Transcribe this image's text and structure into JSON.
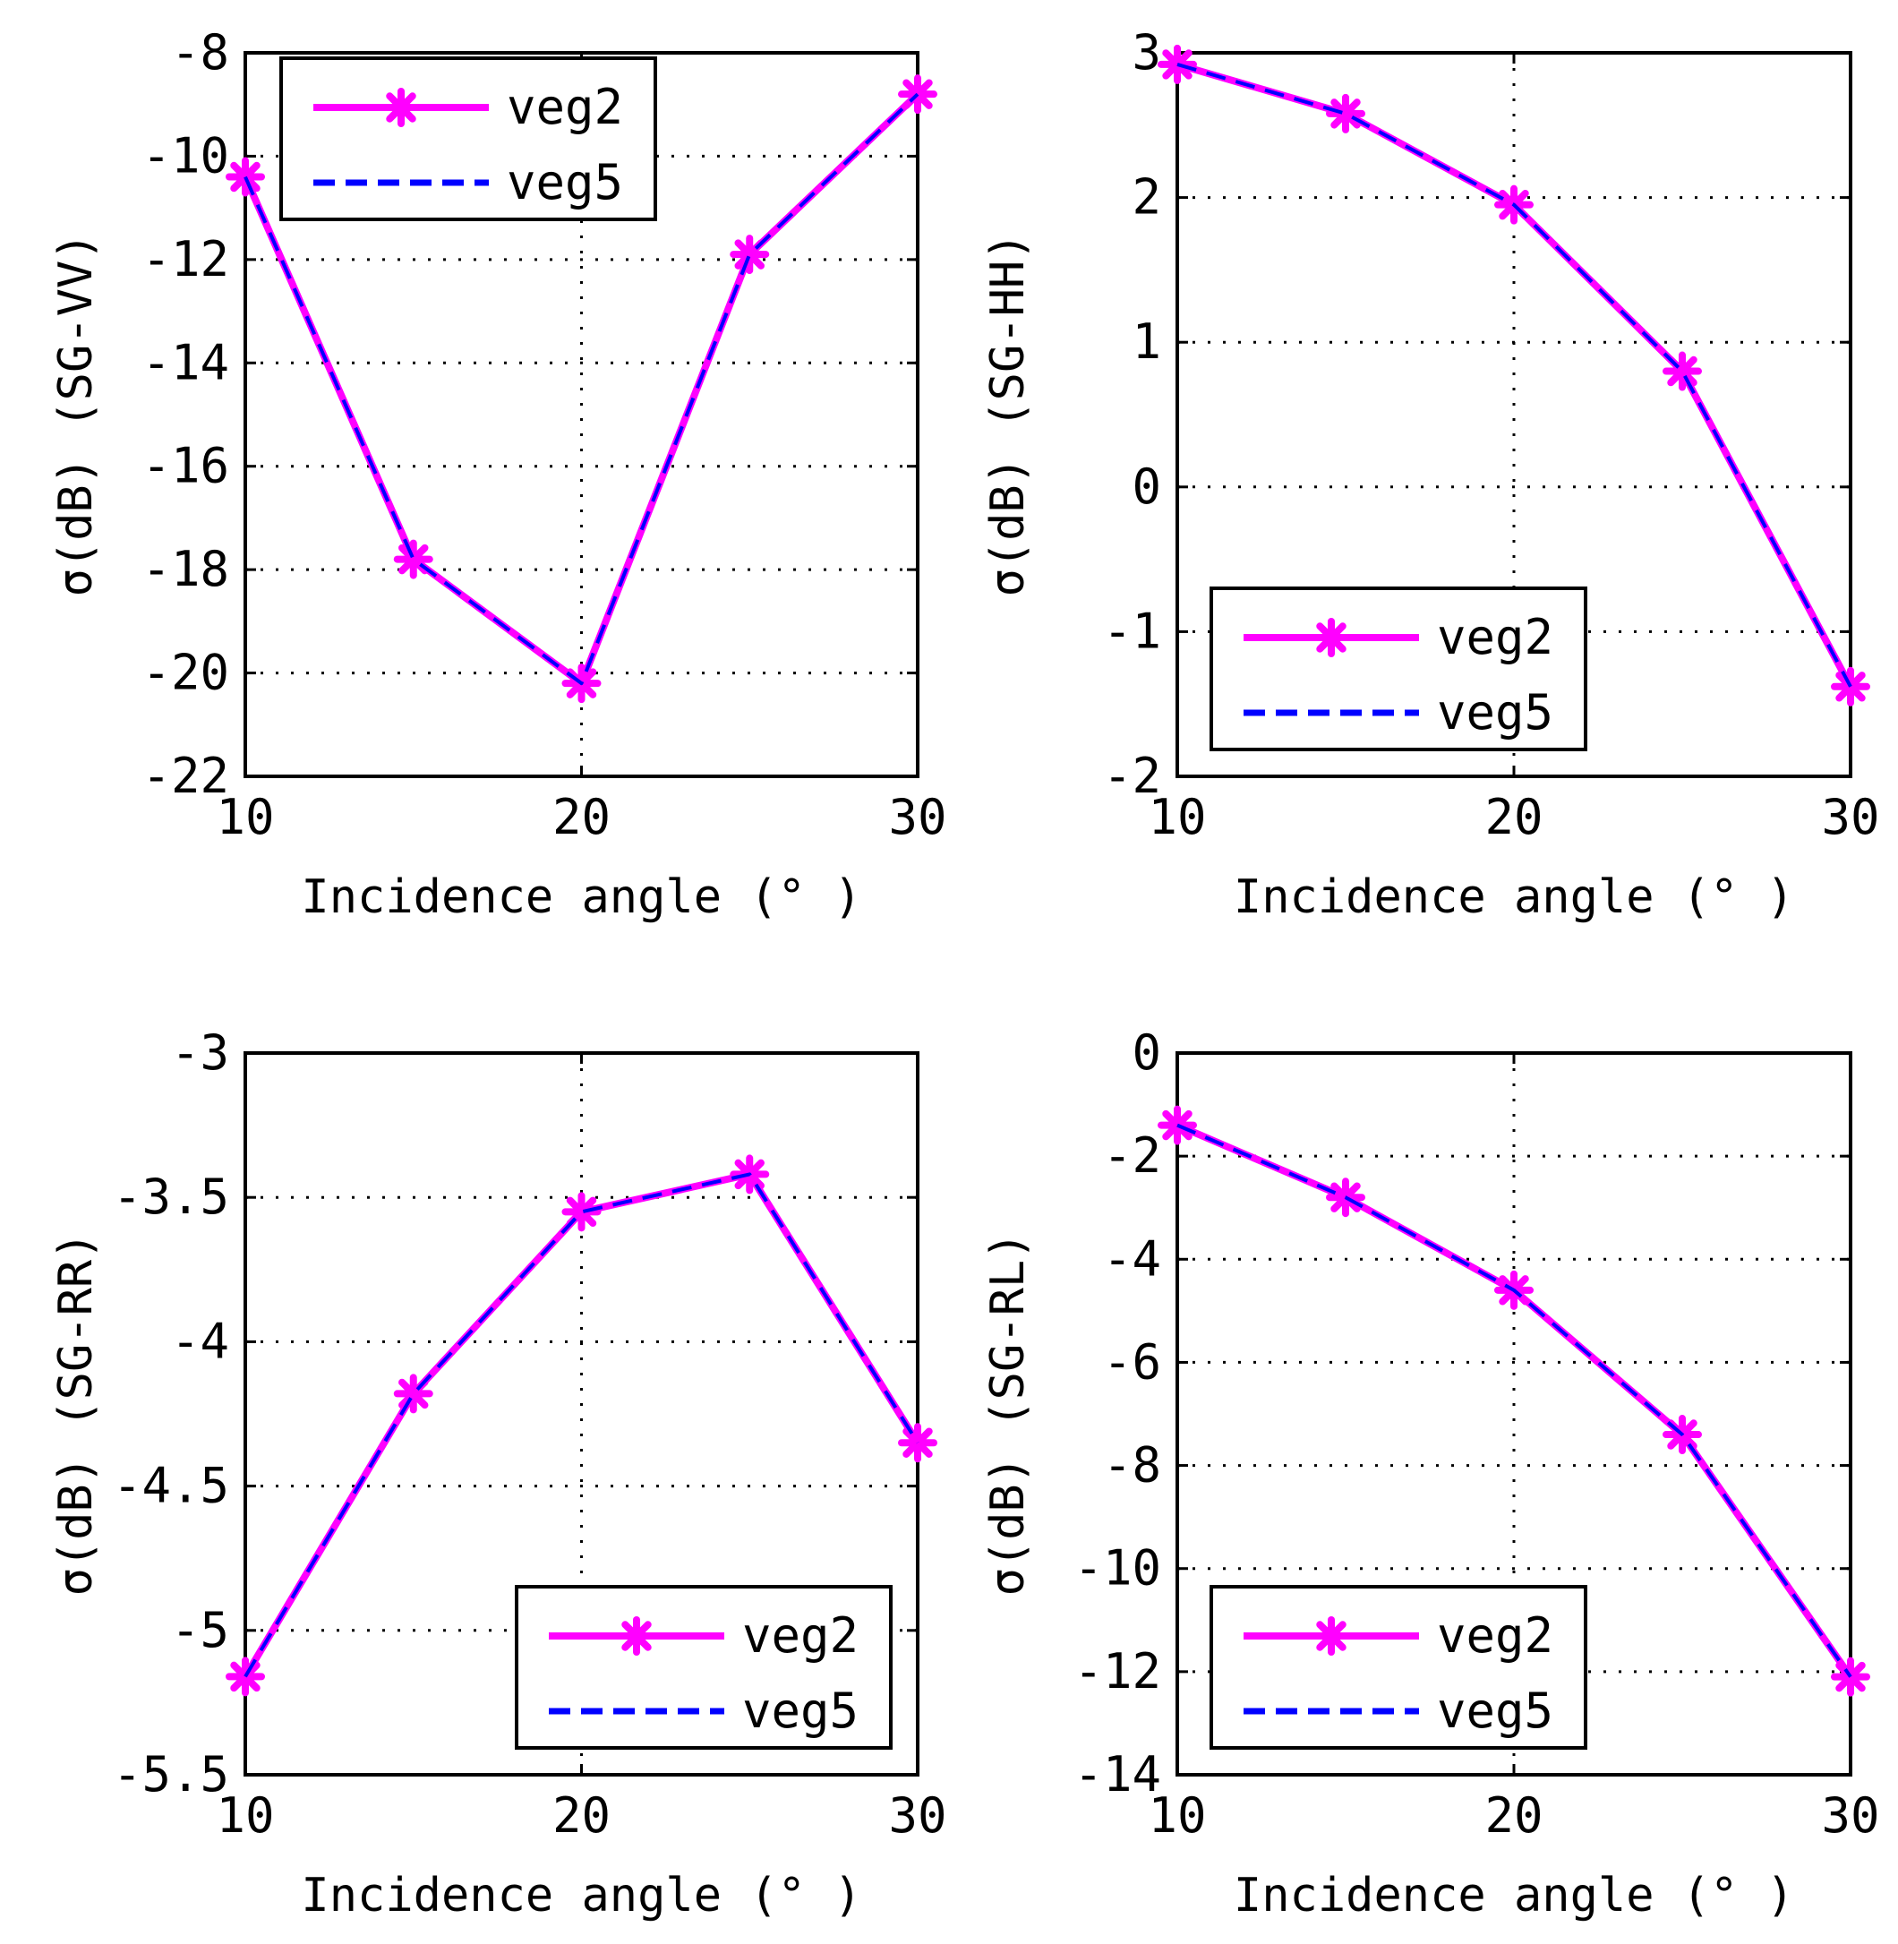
{
  "colors": {
    "veg2": "#ff00ff",
    "veg5": "#0000ff",
    "axes": "#000000",
    "background": "#ffffff"
  },
  "chart_data": [
    {
      "type": "line",
      "panel": "top-left",
      "xlabel": "Incidence angle (° )",
      "ylabel": "σ(dB)  (SG-VV)",
      "xlim": [
        10,
        30
      ],
      "ylim": [
        -22,
        -8
      ],
      "xticks": [
        10,
        20,
        30
      ],
      "xtick_labels": [
        "10",
        "20",
        "30"
      ],
      "yticks": [
        -8,
        -10,
        -12,
        -14,
        -16,
        -18,
        -20,
        -22
      ],
      "ytick_labels": [
        "-8",
        "-10",
        "-12",
        "-14",
        "-16",
        "-18",
        "-20",
        "-22"
      ],
      "grid": true,
      "legend_position": "top-left",
      "x": [
        10,
        15,
        20,
        25,
        30
      ],
      "series": [
        {
          "name": "veg2",
          "style": "solid-star",
          "values": [
            -10.4,
            -17.8,
            -20.2,
            -11.9,
            -8.8
          ]
        },
        {
          "name": "veg5",
          "style": "dashed",
          "values": [
            -10.4,
            -17.8,
            -20.2,
            -11.9,
            -8.8
          ]
        }
      ]
    },
    {
      "type": "line",
      "panel": "top-right",
      "xlabel": "Incidence angle (° )",
      "ylabel": "σ(dB)  (SG-HH)",
      "xlim": [
        10,
        30
      ],
      "ylim": [
        -2,
        3
      ],
      "xticks": [
        10,
        20,
        30
      ],
      "xtick_labels": [
        "10",
        "20",
        "30"
      ],
      "yticks": [
        3,
        2,
        1,
        0,
        -1,
        -2
      ],
      "ytick_labels": [
        "3",
        "2",
        "1",
        "0",
        "-1",
        "-2"
      ],
      "grid": true,
      "legend_position": "bottom-left",
      "x": [
        10,
        15,
        20,
        25,
        30
      ],
      "series": [
        {
          "name": "veg2",
          "style": "solid-star",
          "values": [
            2.92,
            2.58,
            1.95,
            0.8,
            -1.38
          ]
        },
        {
          "name": "veg5",
          "style": "dashed",
          "values": [
            2.92,
            2.58,
            1.95,
            0.8,
            -1.38
          ]
        }
      ]
    },
    {
      "type": "line",
      "panel": "bottom-left",
      "xlabel": "Incidence angle (° )",
      "ylabel": "σ(dB)  (SG-RR)",
      "xlim": [
        10,
        30
      ],
      "ylim": [
        -5.5,
        -3
      ],
      "xticks": [
        10,
        20,
        30
      ],
      "xtick_labels": [
        "10",
        "20",
        "30"
      ],
      "yticks": [
        -3,
        -3.5,
        -4,
        -4.5,
        -5,
        -5.5
      ],
      "ytick_labels": [
        "-3",
        "-3.5",
        "-4",
        "-4.5",
        "-5",
        "-5.5"
      ],
      "grid": true,
      "legend_position": "bottom-right",
      "x": [
        10,
        15,
        20,
        25,
        30
      ],
      "series": [
        {
          "name": "veg2",
          "style": "solid-star",
          "values": [
            -5.16,
            -4.18,
            -3.55,
            -3.42,
            -4.35
          ]
        },
        {
          "name": "veg5",
          "style": "dashed",
          "values": [
            -5.16,
            -4.18,
            -3.55,
            -3.42,
            -4.35
          ]
        }
      ]
    },
    {
      "type": "line",
      "panel": "bottom-right",
      "xlabel": "Incidence angle (° )",
      "ylabel": "σ(dB)  (SG-RL)",
      "xlim": [
        10,
        30
      ],
      "ylim": [
        -14,
        0
      ],
      "xticks": [
        10,
        20,
        30
      ],
      "xtick_labels": [
        "10",
        "20",
        "30"
      ],
      "yticks": [
        0,
        -2,
        -4,
        -6,
        -8,
        -10,
        -12,
        -14
      ],
      "ytick_labels": [
        "0",
        "-2",
        "-4",
        "-6",
        "-8",
        "-10",
        "-12",
        "-14"
      ],
      "grid": true,
      "legend_position": "bottom-left",
      "x": [
        10,
        15,
        20,
        25,
        30
      ],
      "series": [
        {
          "name": "veg2",
          "style": "solid-star",
          "values": [
            -1.4,
            -2.8,
            -4.6,
            -7.4,
            -12.1
          ]
        },
        {
          "name": "veg5",
          "style": "dashed",
          "values": [
            -1.4,
            -2.8,
            -4.6,
            -7.4,
            -12.1
          ]
        }
      ]
    }
  ]
}
